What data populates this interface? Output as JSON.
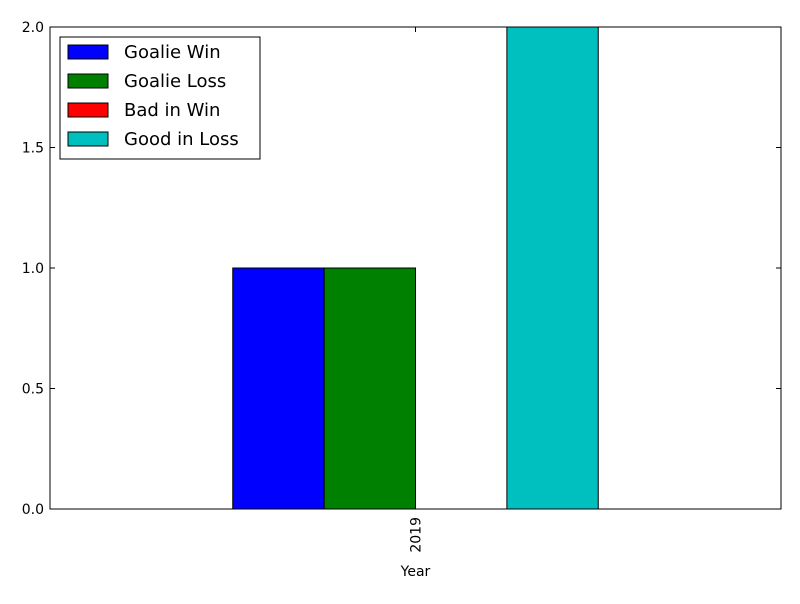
{
  "chart_data": {
    "type": "bar",
    "categories": [
      "2019"
    ],
    "series": [
      {
        "name": "Goalie Win",
        "values": [
          1
        ],
        "color": "#0000ff"
      },
      {
        "name": "Goalie Loss",
        "values": [
          1
        ],
        "color": "#008000"
      },
      {
        "name": "Bad in Win",
        "values": [
          0
        ],
        "color": "#ff0000"
      },
      {
        "name": "Good in Loss",
        "values": [
          2
        ],
        "color": "#00bfbf"
      }
    ],
    "xlabel": "Year",
    "ylabel": "",
    "ylim": [
      0,
      2.0
    ],
    "yticks": [
      "0.0",
      "0.5",
      "1.0",
      "1.5",
      "2.0"
    ],
    "xtick_rotation": "vertical",
    "grid": false,
    "legend_position": "upper-left"
  }
}
